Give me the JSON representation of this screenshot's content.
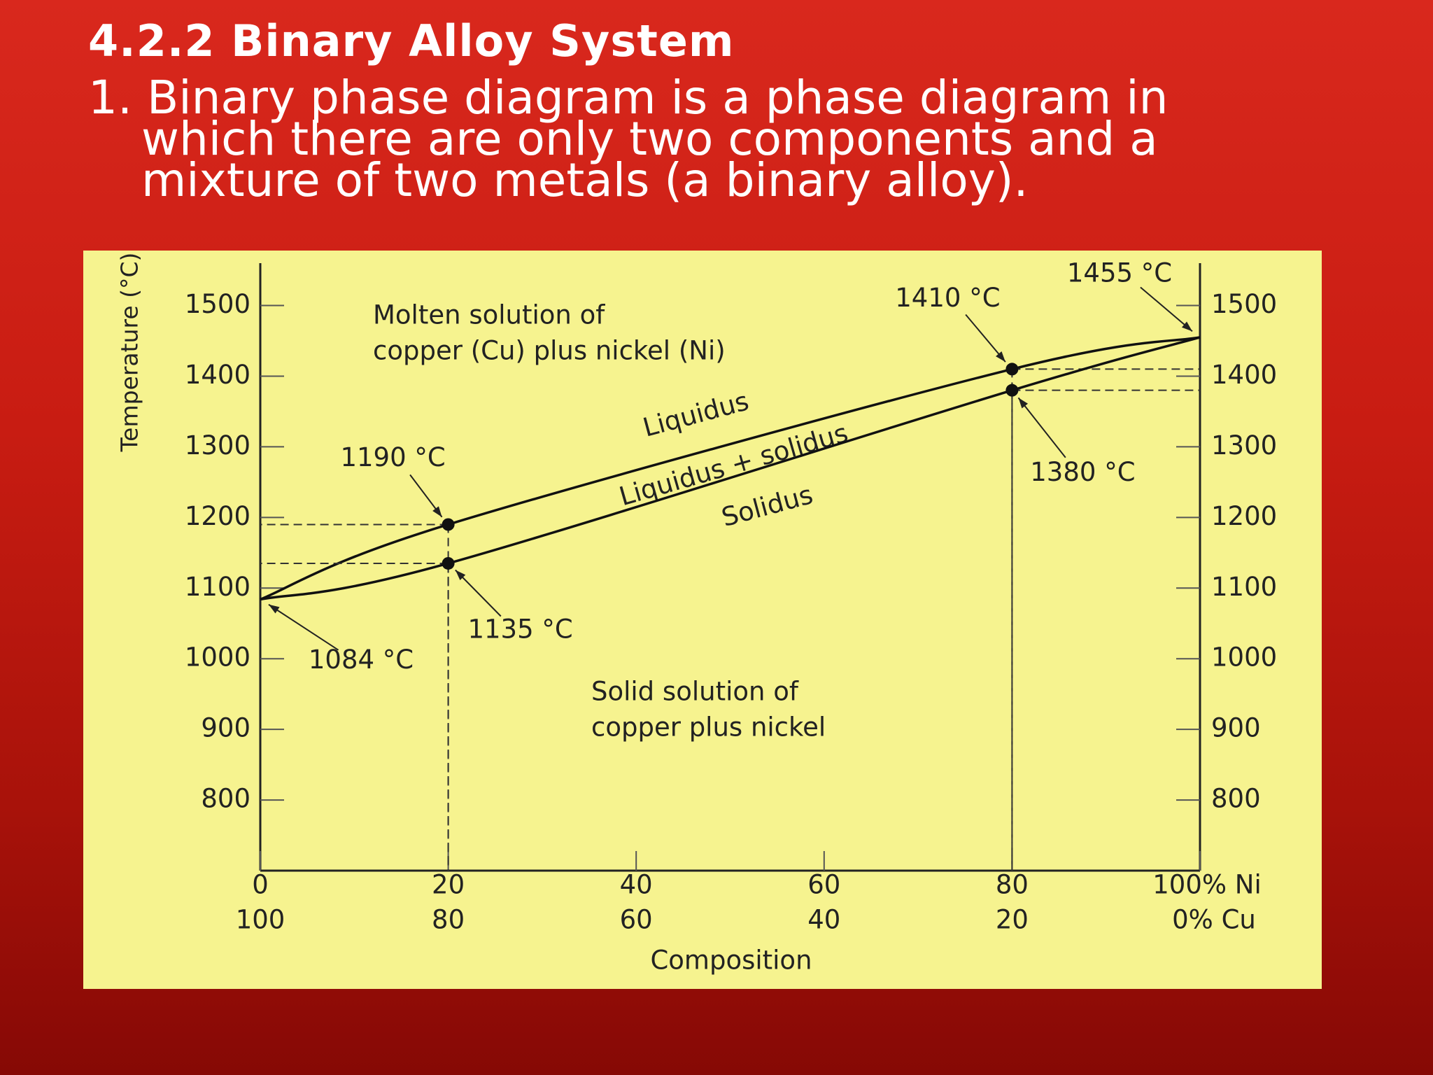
{
  "slide": {
    "title": "4.2.2 Binary Alloy System",
    "body": "1. Binary phase diagram is a phase diagram in which there are only two components and a mixture of two metals (a binary alloy)."
  },
  "chart_data": {
    "type": "line",
    "y_label": "Temperature (°C)",
    "x_label": "Composition",
    "annotations": [
      "Molten solution of",
      "copper (Cu) plus nickel (Ni)",
      "Liquidus + solidus",
      "Solid solution of",
      "copper plus nickel"
    ],
    "xlim": [
      0,
      100
    ],
    "xticks": [
      0,
      20,
      40,
      60,
      80,
      {
        "value": 100,
        "label": "100% Ni"
      }
    ],
    "x2lim": [
      100,
      0
    ],
    "x2ticks": [
      100,
      80,
      60,
      40,
      20,
      {
        "value": 0,
        "label": "0% Cu"
      }
    ],
    "ylim": [
      700,
      1560
    ],
    "yticks": [
      800,
      900,
      1000,
      1100,
      1200,
      1300,
      1400,
      1500
    ],
    "y2lim": [
      700,
      1560
    ],
    "y2ticks": [
      800,
      900,
      1000,
      1100,
      1200,
      1300,
      1400,
      1500
    ],
    "series": [
      {
        "name": "Liquidus",
        "color": "#111111",
        "x": [
          0,
          20,
          80,
          100
        ],
        "values": [
          1084,
          1190,
          1410,
          1455
        ],
        "value_labels": [
          "1084 °C",
          "1190 °C",
          "1410 °C",
          "1455 °C"
        ]
      },
      {
        "name": "Solidus",
        "color": "#111111",
        "x": [
          0,
          20,
          80,
          100
        ],
        "values": [
          1084,
          1135,
          1380,
          1455
        ],
        "value_labels": [
          null,
          "1135 °C",
          "1380 °C",
          null
        ]
      }
    ]
  }
}
